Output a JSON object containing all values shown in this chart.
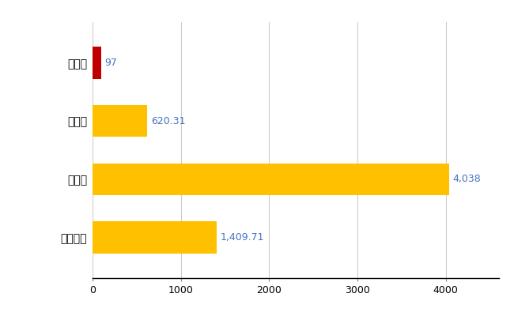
{
  "categories": [
    "全国平均",
    "県最大",
    "県平均",
    "金山町"
  ],
  "values": [
    1409.71,
    4038,
    620.31,
    97
  ],
  "bar_colors": [
    "#FFC000",
    "#FFC000",
    "#FFC000",
    "#C00000"
  ],
  "value_labels": [
    "1,409.71",
    "4,038",
    "620.31",
    "97"
  ],
  "xlim": [
    0,
    4600
  ],
  "xticks": [
    0,
    1000,
    2000,
    3000,
    4000
  ],
  "xtick_labels": [
    "0",
    "1000",
    "2000",
    "3000",
    "4000"
  ],
  "background_color": "#FFFFFF",
  "grid_color": "#CCCCCC",
  "bar_height": 0.55,
  "label_fontsize": 10,
  "tick_fontsize": 9,
  "value_label_color": "#4472C4",
  "value_label_fontsize": 9
}
